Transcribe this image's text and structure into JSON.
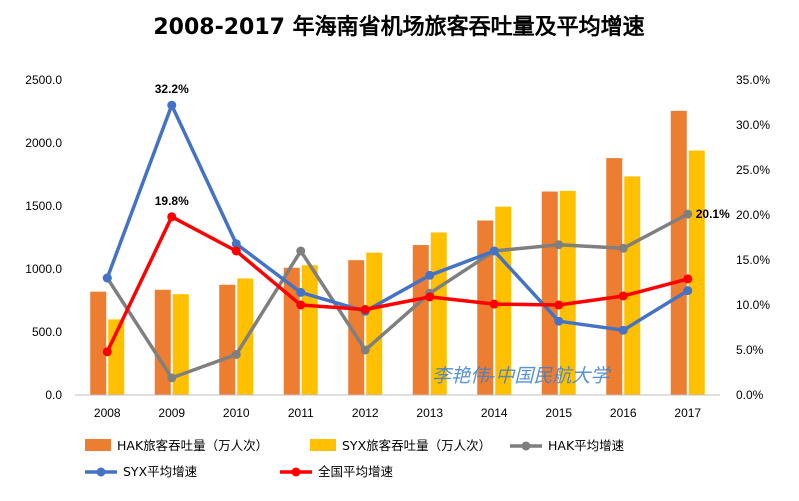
{
  "chart_data": {
    "type": "bar",
    "title": "2008-2017 年海南省机场旅客吞吐量及平均增速",
    "categories": [
      "2008",
      "2009",
      "2010",
      "2011",
      "2012",
      "2013",
      "2014",
      "2015",
      "2016",
      "2017"
    ],
    "y_left": {
      "ylim": [
        0,
        2500
      ],
      "ticks": [
        "0.0",
        "500.0",
        "1000.0",
        "1500.0",
        "2000.0",
        "2500.0"
      ]
    },
    "y_right": {
      "ylim": [
        0,
        35
      ],
      "ticks": [
        "0.0%",
        "5.0%",
        "10.0%",
        "15.0%",
        "20.0%",
        "25.0%",
        "30.0%",
        "35.0%"
      ]
    },
    "bar_series": [
      {
        "name": "HAK旅客吞吐量（万人次）",
        "color": "#ED7D31",
        "axis": "left",
        "values": [
          820,
          835,
          875,
          1010,
          1070,
          1190,
          1385,
          1615,
          1880,
          2255
        ]
      },
      {
        "name": "SYX旅客吞吐量（万人次）",
        "color": "#FFC000",
        "axis": "left",
        "values": [
          600,
          800,
          925,
          1030,
          1130,
          1290,
          1495,
          1620,
          1735,
          1940
        ]
      }
    ],
    "line_series": [
      {
        "name": "HAK平均增速",
        "color": "#7F7F7F",
        "axis": "right",
        "values": [
          13.0,
          1.9,
          4.5,
          16.0,
          5.0,
          11.3,
          16.0,
          16.7,
          16.3,
          20.1
        ]
      },
      {
        "name": "SYX平均增速",
        "color": "#4472C4",
        "axis": "right",
        "values": [
          13.0,
          32.2,
          16.8,
          11.4,
          9.3,
          13.3,
          16.0,
          8.2,
          7.2,
          11.6
        ]
      },
      {
        "name": "全国平均增速",
        "color": "#FF0000",
        "axis": "right",
        "values": [
          4.8,
          19.8,
          16.0,
          10.0,
          9.5,
          10.9,
          10.1,
          10.0,
          11.0,
          12.9
        ]
      }
    ],
    "annotations": [
      {
        "text": "32.2%",
        "series": "SYX平均增速",
        "category": "2009"
      },
      {
        "text": "19.8%",
        "series": "全国平均增速",
        "category": "2009"
      },
      {
        "text": "20.1%",
        "series": "HAK平均增速",
        "category": "2017"
      }
    ],
    "legend_position": "bottom",
    "watermark": "李艳伟-中国民航大学"
  }
}
